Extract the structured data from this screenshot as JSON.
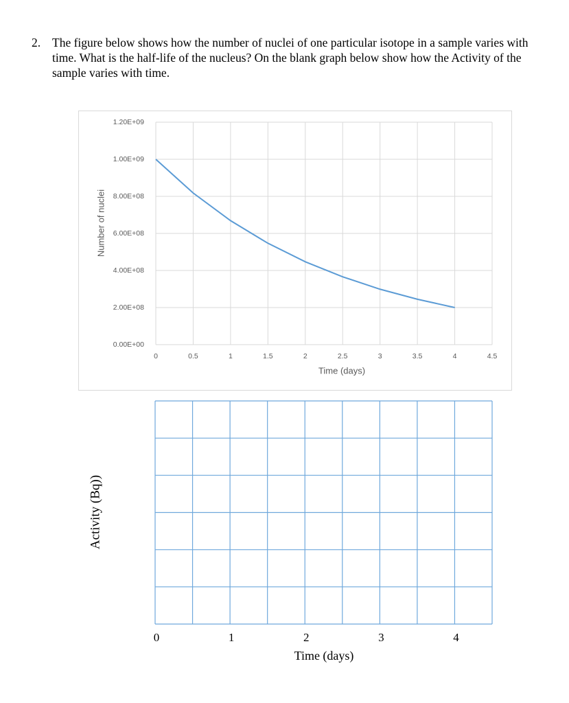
{
  "question": {
    "number": "2.",
    "text": "The figure below shows how the number of nuclei of one particular isotope in a sample varies with time. What is the half-life of the nucleus? On the blank graph below show how the Activity of the sample varies with time."
  },
  "chart_data": [
    {
      "type": "line",
      "xlabel": "Time (days)",
      "ylabel": "Number of nuclei",
      "x": [
        0,
        0.5,
        1,
        1.5,
        2,
        2.5,
        3,
        3.5,
        4
      ],
      "values": [
        1000000000,
        818000000,
        669000000,
        547000000,
        447000000,
        366000000,
        299000000,
        245000000,
        200000000
      ],
      "color": "#5b9bd5",
      "xlim": [
        0,
        4.5
      ],
      "xticks": [
        0,
        0.5,
        1,
        1.5,
        2,
        2.5,
        3,
        3.5,
        4,
        4.5
      ],
      "ylim": [
        0,
        1200000000
      ],
      "yticks": [
        {
          "value": 0,
          "label": "0.00E+00"
        },
        {
          "value": 200000000,
          "label": "2.00E+08"
        },
        {
          "value": 400000000,
          "label": "4.00E+08"
        },
        {
          "value": 600000000,
          "label": "6.00E+08"
        },
        {
          "value": 800000000,
          "label": "8.00E+08"
        },
        {
          "value": 1000000000,
          "label": "1.00E+09"
        },
        {
          "value": 1200000000,
          "label": "1.20E+09"
        }
      ],
      "grid": true
    },
    {
      "type": "line",
      "xlabel": "Time (days)",
      "ylabel": "Activity (Bq))",
      "xlim": [
        0,
        4.5
      ],
      "xticks": [
        0,
        1,
        2,
        3,
        4
      ],
      "color": "#6fa8dc",
      "grid": true
    }
  ]
}
